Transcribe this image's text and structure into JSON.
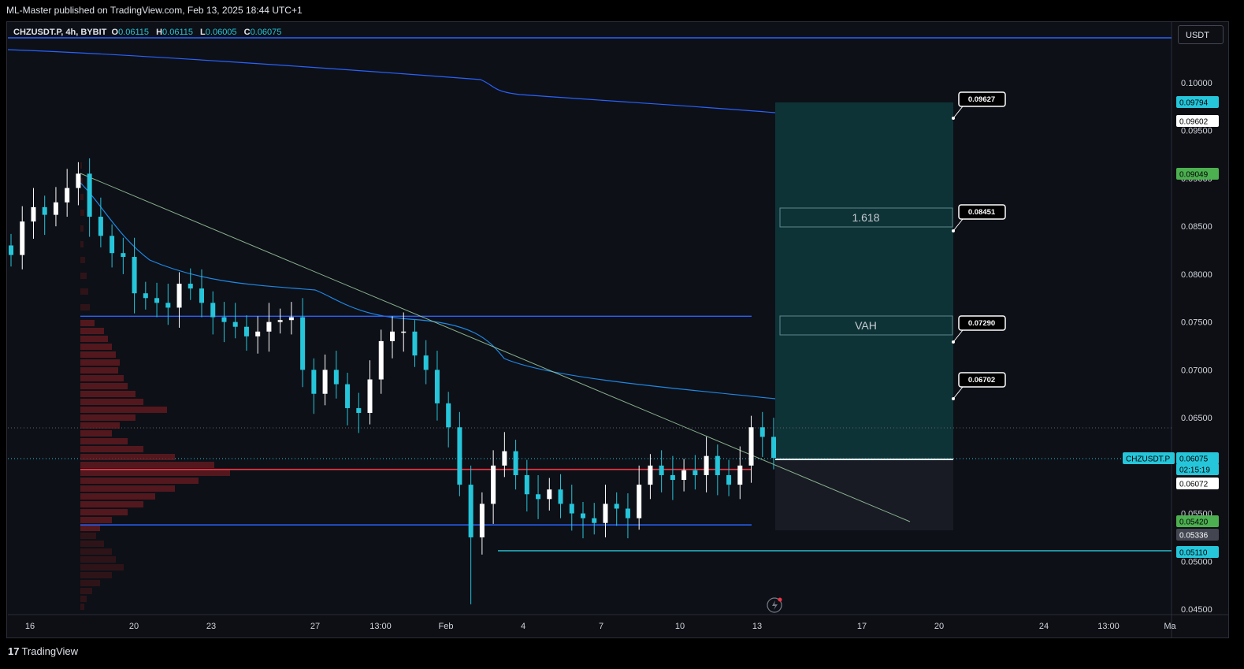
{
  "header": {
    "publisher": "ML-Master published on TradingView.com, Feb 13, 2025 18:44 UTC+1"
  },
  "symbol": {
    "name": "CHZUSDT.P, 4h, BYBIT",
    "o_label": "O",
    "o": "0.06115",
    "h_label": "H",
    "h": "0.06115",
    "l_label": "L",
    "l": "0.06005",
    "c_label": "C",
    "c": "0.06075"
  },
  "currency_button": "USDT",
  "footer": {
    "brand_mark": "17",
    "brand": "TradingView"
  },
  "chart_data": {
    "type": "candlestick",
    "title": "CHZUSDT.P, 4h, BYBIT",
    "ylim": [
      0.0445,
      0.1055
    ],
    "y_ticks": [
      "0.10000",
      "0.09500",
      "0.09000",
      "0.08500",
      "0.08000",
      "0.07500",
      "0.07000",
      "0.06500",
      "0.06000",
      "0.05500",
      "0.05000",
      "0.04500"
    ],
    "x_ticks": [
      "16",
      "20",
      "23",
      "27",
      "13:00",
      "Feb",
      "4",
      "7",
      "10",
      "13",
      "17",
      "20",
      "24",
      "13:00",
      "Ma"
    ],
    "price_series_approx": [
      0.082,
      0.0855,
      0.087,
      0.0862,
      0.0875,
      0.089,
      0.0905,
      0.086,
      0.084,
      0.0822,
      0.0818,
      0.078,
      0.0775,
      0.077,
      0.0765,
      0.079,
      0.0785,
      0.077,
      0.0755,
      0.075,
      0.0745,
      0.0735,
      0.074,
      0.075,
      0.0752,
      0.0755,
      0.07,
      0.0675,
      0.07,
      0.0685,
      0.066,
      0.0655,
      0.069,
      0.073,
      0.074,
      0.074,
      0.0715,
      0.07,
      0.0665,
      0.064,
      0.058,
      0.0525,
      0.056,
      0.06,
      0.0615,
      0.059,
      0.057,
      0.0565,
      0.0575,
      0.056,
      0.055,
      0.0545,
      0.054,
      0.056,
      0.0555,
      0.0545,
      0.058,
      0.06,
      0.059,
      0.0585,
      0.0595,
      0.059,
      0.061,
      0.059,
      0.058,
      0.06,
      0.064,
      0.063,
      0.0608
    ],
    "horizontal_levels": [
      {
        "name": "VAH line",
        "price": 0.0756,
        "color": "#2962ff"
      },
      {
        "name": "POC line",
        "price": 0.0596,
        "color": "#f23645"
      },
      {
        "name": "VAL line",
        "price": 0.0538,
        "color": "#2962ff"
      },
      {
        "name": "support line",
        "price": 0.0511,
        "color": "#26c6da"
      },
      {
        "name": "top line",
        "price": 0.1046,
        "color": "#2962ff"
      }
    ],
    "price_scale_labels": [
      {
        "value": "0.09794",
        "bg": "#26c6da",
        "fg": "#000000"
      },
      {
        "value": "0.09602",
        "bg": "#ffffff",
        "fg": "#000000"
      },
      {
        "value": "0.09049",
        "bg": "#4caf50",
        "fg": "#000000"
      },
      {
        "value": "CHZUSDT.P",
        "bg": "#26c6da",
        "fg": "#000000"
      },
      {
        "value": "0.06075",
        "bg": "#26c6da",
        "fg": "#000000"
      },
      {
        "value": "02:15:19",
        "bg": "#26c6da",
        "fg": "#000000"
      },
      {
        "value": "0.06072",
        "bg": "#ffffff",
        "fg": "#000000"
      },
      {
        "value": "0.05420",
        "bg": "#4caf50",
        "fg": "#000000"
      },
      {
        "value": "0.05336",
        "bg": "#434651",
        "fg": "#ffffff"
      },
      {
        "value": "0.05110",
        "bg": "#26c6da",
        "fg": "#000000"
      }
    ],
    "target_callouts": [
      "0.09627",
      "0.08451",
      "0.07290",
      "0.06702"
    ],
    "zone_labels": [
      "1.618",
      "VAH"
    ]
  }
}
